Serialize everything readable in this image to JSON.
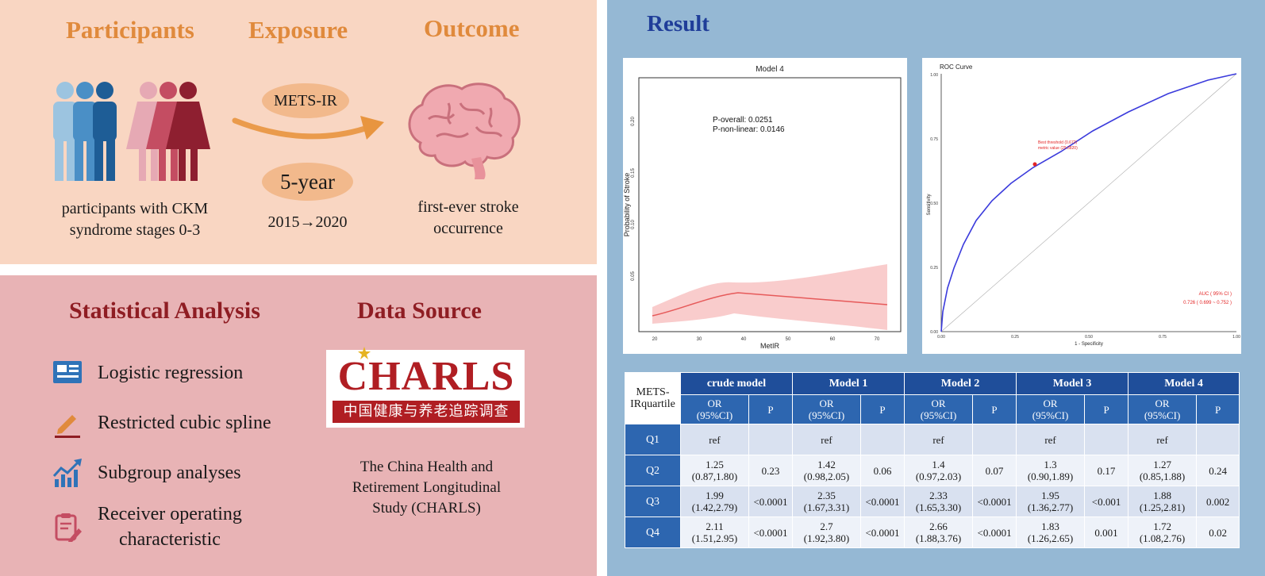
{
  "top": {
    "headings": [
      "Participants",
      "Exposure",
      "Outcome"
    ],
    "participants_caption": [
      "participants with CKM",
      "syndrome stages 0-3"
    ],
    "exposure_oval": "METS-IR",
    "duration_oval": "5-year",
    "period": "2015→2020",
    "outcome_caption": [
      "first-ever stroke",
      "occurrence"
    ]
  },
  "bottom": {
    "stat_heading": "Statistical Analysis",
    "data_heading": "Data Source",
    "methods": [
      {
        "label": "Logistic regression",
        "icon": "regression-report-icon"
      },
      {
        "label": "Restricted cubic spline",
        "icon": "pen-line-icon"
      },
      {
        "label": "Subgroup analyses",
        "icon": "trend-chart-icon"
      },
      {
        "label": "Receiver operating characteristic",
        "icon": "clipboard-pen-icon"
      }
    ],
    "logo_text": "CHARLS",
    "logo_chinese": "中国健康与养老追踪调查",
    "source_caption": [
      "The China Health and",
      "Retirement Longitudinal",
      "Study (CHARLS)"
    ]
  },
  "result": {
    "heading": "Result",
    "spline_chart": {
      "title": "Model 4",
      "annotation": [
        "P-overall: 0.0251",
        "P-non-linear: 0.0146"
      ],
      "xlabel": "MetIR",
      "ylabel": "Probability of Stroke",
      "x_ticks": [
        "20",
        "30",
        "40",
        "50",
        "60",
        "70"
      ],
      "y_ticks": [
        "0.05",
        "0.10",
        "0.15",
        "0.20"
      ]
    },
    "roc_chart": {
      "title": "ROC Curve",
      "xlabel": "1 - Specificity",
      "ylabel": "Sensitivity",
      "x_ticks": [
        "0.00",
        "0.25",
        "0.50",
        "0.75",
        "1.00"
      ],
      "y_ticks": [
        "0.00",
        "0.25",
        "0.50",
        "0.75",
        "1.00"
      ],
      "threshold_label": [
        "Best threshold (0.672)",
        "metric value (29.5820)"
      ],
      "auc_label": [
        "AUC ( 95% CI )",
        "0.726 ( 0.699 ~ 0.752 )"
      ]
    },
    "table": {
      "corner": [
        "METS-",
        "IRquartile"
      ],
      "models": [
        "crude model",
        "Model 1",
        "Model 2",
        "Model 3",
        "Model 4"
      ],
      "sub_or": [
        "OR",
        "(95%CI)"
      ],
      "sub_p": "P",
      "rows": [
        {
          "q": "Q1",
          "cells": [
            [
              "ref",
              ""
            ],
            "",
            [
              "ref",
              ""
            ],
            "",
            [
              "ref",
              ""
            ],
            "",
            [
              "ref",
              ""
            ],
            "",
            [
              "ref",
              ""
            ],
            ""
          ]
        },
        {
          "q": "Q2",
          "cells": [
            [
              "1.25",
              "(0.87,1.80)"
            ],
            "0.23",
            [
              "1.42",
              "(0.98,2.05)"
            ],
            "0.06",
            [
              "1.4",
              "(0.97,2.03)"
            ],
            "0.07",
            [
              "1.3",
              "(0.90,1.89)"
            ],
            "0.17",
            [
              "1.27",
              "(0.85,1.88)"
            ],
            "0.24"
          ]
        },
        {
          "q": "Q3",
          "cells": [
            [
              "1.99",
              "(1.42,2.79)"
            ],
            "<0.0001",
            [
              "2.35",
              "(1.67,3.31)"
            ],
            "<0.0001",
            [
              "2.33",
              "(1.65,3.30)"
            ],
            "<0.0001",
            [
              "1.95",
              "(1.36,2.77)"
            ],
            "<0.001",
            [
              "1.88",
              "(1.25,2.81)"
            ],
            "0.002"
          ]
        },
        {
          "q": "Q4",
          "cells": [
            [
              "2.11",
              "(1.51,2.95)"
            ],
            "<0.0001",
            [
              "2.7",
              "(1.92,3.80)"
            ],
            "<0.0001",
            [
              "2.66",
              "(1.88,3.76)"
            ],
            "<0.0001",
            [
              "1.83",
              "(1.26,2.65)"
            ],
            "0.001",
            [
              "1.72",
              "(1.08,2.76)"
            ],
            "0.02"
          ]
        }
      ]
    }
  },
  "colors": {
    "top_bg": "#f9d6c2",
    "bottom_bg": "#e8b3b5",
    "right_bg": "#95b8d4",
    "heading_orange": "#e08a3c",
    "heading_red": "#8f1d23",
    "result_blue": "#1f3d99",
    "table_header": "#1f4e9a"
  }
}
